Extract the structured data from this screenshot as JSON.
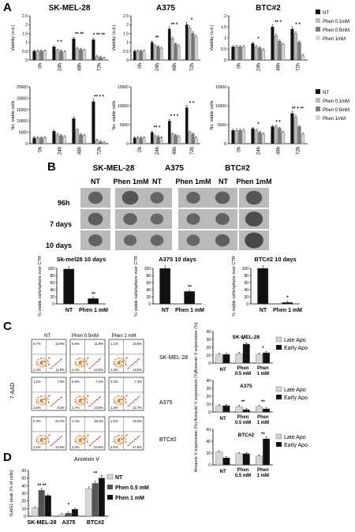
{
  "panels": {
    "A": "A",
    "B": "B",
    "C": "C",
    "D": "D"
  },
  "colors": {
    "NT": "#111111",
    "Phen 0.1mM": "#bdbdbd",
    "Phen 0.5mM": "#7a7a7a",
    "Phen 1mM": "#d6d6d6"
  },
  "panelA": {
    "legend": [
      "NT",
      "Phen 0.1mM",
      "Phen 0.5mM",
      "Phen 1mM"
    ],
    "timepoints": [
      "0h",
      "24h",
      "48h",
      "72h"
    ]
  },
  "panelB": {
    "col_titles": [
      "SK-MEL-28",
      "A375",
      "BTC#2"
    ],
    "col_labels": [
      "NT",
      "Phen 1mM"
    ],
    "row_labels": [
      "96h",
      "7 days",
      "10 days"
    ],
    "tone": [
      [
        [
          0.35,
          0.55
        ],
        [
          0.25,
          0.3
        ],
        [
          0.38,
          0.55
        ]
      ],
      [
        [
          0.4,
          0.3
        ],
        [
          0.2,
          0.25
        ],
        [
          0.3,
          0.7
        ]
      ],
      [
        [
          0.3,
          0.2
        ],
        [
          0.22,
          0.22
        ],
        [
          0.35,
          0.8
        ]
      ]
    ]
  },
  "panelC": {
    "conditions": [
      "NT",
      "Phen 0.5mM",
      "Phen 1 mM"
    ],
    "rows": [
      "SK-MEL-28",
      "A375",
      "BTC#2"
    ],
    "ylabel": "7-AAD",
    "xlabel": "Annexin V",
    "quadrants": [
      [
        [
          "0.7%",
          "10.9%",
          "1.4%",
          "11.8%"
        ],
        [
          "0.9%",
          "11.9%",
          "1.4%",
          "24.5%"
        ],
        [
          "1.1%",
          "10.8%",
          "1.3%",
          "13.6%"
        ]
      ],
      [
        [
          "1.2%",
          "7.6%",
          "1.5%",
          "8.2%"
        ],
        [
          "0.9%",
          "7.4%",
          "1.7%",
          "13.6%"
        ],
        [
          "0.3%",
          "7.4%",
          "1.4%",
          "12.7%"
        ]
      ],
      [
        [
          "2.3%",
          "22.2%",
          "1.2%",
          "12.8%"
        ],
        [
          "1.4%",
          "19.1%",
          "1.0%",
          "24.6%"
        ],
        [
          "1.5%",
          "15.0%",
          "1.5%",
          "47.8%"
        ]
      ]
    ]
  },
  "panelD": {
    "legend": [
      "NT",
      "Phen 0.5 mM",
      "Phen 1 mM"
    ]
  },
  "chart_data": [
    {
      "type": "bar",
      "id": "viability-skmel28",
      "title": "SK-MEL-28",
      "ylabel": "Viability (o.d.)",
      "ylim": [
        0,
        2.5
      ],
      "yticks": [
        "0",
        "0.5",
        "1",
        "1.5",
        "2",
        "2.5"
      ],
      "categories": [
        "0h",
        "24h",
        "48h",
        "72h"
      ],
      "series": [
        {
          "name": "NT",
          "values": [
            0.5,
            0.75,
            1.2,
            1.15
          ]
        },
        {
          "name": "Phen 0.1mM",
          "values": [
            0.5,
            0.55,
            0.65,
            0.2
          ]
        },
        {
          "name": "Phen 0.5mM",
          "values": [
            0.5,
            0.5,
            0.6,
            0.15
          ]
        },
        {
          "name": "Phen 1mM",
          "values": [
            0.5,
            0.45,
            0.55,
            0.1
          ]
        }
      ],
      "annotations": [
        "",
        "*  *",
        "**  **",
        "*  **  **"
      ]
    },
    {
      "type": "bar",
      "id": "viability-a375",
      "title": "A375",
      "ylabel": "Viability (o.d.)",
      "ylim": [
        0,
        2.5
      ],
      "yticks": [
        "0",
        "0.5",
        "1",
        "1.5",
        "2",
        "2.5"
      ],
      "categories": [
        "0h",
        "24h",
        "48h",
        "72h"
      ],
      "series": [
        {
          "name": "NT",
          "values": [
            0.5,
            1.0,
            1.75,
            2.0
          ]
        },
        {
          "name": "Phen 0.1mM",
          "values": [
            0.5,
            0.8,
            1.2,
            1.8
          ]
        },
        {
          "name": "Phen 0.5mM",
          "values": [
            0.5,
            0.75,
            0.9,
            1.5
          ]
        },
        {
          "name": "Phen 1mM",
          "values": [
            0.5,
            0.65,
            0.8,
            1.3
          ]
        }
      ],
      "annotations": [
        "",
        "**",
        "**  *",
        "*"
      ]
    },
    {
      "type": "bar",
      "id": "viability-btc2",
      "title": "BTC#2",
      "ylabel": "Viability (o.d.)",
      "ylim": [
        0,
        2.0
      ],
      "yticks": [
        "0",
        "0.5",
        "1",
        "1.5",
        "2"
      ],
      "categories": [
        "0h",
        "24h",
        "48h",
        "72h"
      ],
      "series": [
        {
          "name": "NT",
          "values": [
            0.6,
            0.75,
            1.5,
            1.4
          ]
        },
        {
          "name": "Phen 0.1mM",
          "values": [
            0.6,
            0.6,
            1.1,
            1.2
          ]
        },
        {
          "name": "Phen 0.5mM",
          "values": [
            0.6,
            0.55,
            0.85,
            0.8
          ]
        },
        {
          "name": "Phen 1mM",
          "values": [
            0.6,
            0.45,
            0.7,
            0.2
          ]
        }
      ],
      "annotations": [
        "",
        "*",
        "**  *",
        "*  *"
      ]
    },
    {
      "type": "bar",
      "id": "viable-skmel28",
      "ylabel": "No. viable cells",
      "ylim": [
        0,
        25000
      ],
      "yticks": [
        "0",
        "5000",
        "10000",
        "15000",
        "20000",
        "25000"
      ],
      "categories": [
        "0h",
        "24h",
        "48h",
        "72h"
      ],
      "series": [
        {
          "name": "NT",
          "values": [
            2500,
            5500,
            11000,
            18500
          ]
        },
        {
          "name": "Phen 0.1mM",
          "values": [
            2500,
            4000,
            6000,
            1500
          ]
        },
        {
          "name": "Phen 0.5mM",
          "values": [
            2500,
            3500,
            4000,
            800
          ]
        },
        {
          "name": "Phen 1mM",
          "values": [
            2500,
            3000,
            3500,
            500
          ]
        }
      ],
      "annotations": [
        "",
        "",
        "",
        "**  *  *"
      ]
    },
    {
      "type": "bar",
      "id": "viable-a375",
      "ylabel": "No. viable cells",
      "ylim": [
        0,
        15000
      ],
      "yticks": [
        "0",
        "5000",
        "10000",
        "15000"
      ],
      "categories": [
        "0h",
        "24h",
        "48h",
        "72h"
      ],
      "series": [
        {
          "name": "NT",
          "values": [
            1500,
            3000,
            6000,
            9500
          ]
        },
        {
          "name": "Phen 0.1mM",
          "values": [
            1500,
            2000,
            2500,
            3000
          ]
        },
        {
          "name": "Phen 0.5mM",
          "values": [
            1500,
            1800,
            2200,
            2500
          ]
        },
        {
          "name": "Phen 1mM",
          "values": [
            1500,
            1500,
            1800,
            1500
          ]
        }
      ],
      "annotations": [
        "",
        "**  *",
        "*  *  *",
        "*  *"
      ]
    },
    {
      "type": "bar",
      "id": "viable-btc2",
      "ylabel": "No. viable cells",
      "ylim": [
        0,
        15000
      ],
      "yticks": [
        "0",
        "5000",
        "10000",
        "15000"
      ],
      "categories": [
        "0h",
        "24h",
        "48h",
        "72h"
      ],
      "series": [
        {
          "name": "NT",
          "values": [
            3500,
            4000,
            4500,
            8000
          ]
        },
        {
          "name": "Phen 0.1mM",
          "values": [
            3500,
            3500,
            4500,
            7000
          ]
        },
        {
          "name": "Phen 0.5mM",
          "values": [
            3500,
            3000,
            4000,
            4500
          ]
        },
        {
          "name": "Phen 1mM",
          "values": [
            3500,
            2500,
            3000,
            2500
          ]
        }
      ],
      "annotations": [
        "",
        "*",
        "*  *",
        "**  *  **"
      ]
    },
    {
      "type": "bar",
      "id": "sphere-skmel28",
      "title": "Sk-mel28 10 days",
      "ylabel": "% viable cells/sphere over CTR",
      "ylim": [
        0,
        100
      ],
      "yticks": [
        "0",
        "20",
        "40",
        "60",
        "80",
        "100"
      ],
      "categories": [
        "NT",
        "Phen 1 mM"
      ],
      "values": [
        98,
        15
      ],
      "annotations": [
        "",
        "**"
      ]
    },
    {
      "type": "bar",
      "id": "sphere-a375",
      "title": "A375 10 days",
      "ylabel": "% viable cells/sphere over CTR",
      "ylim": [
        0,
        100
      ],
      "yticks": [
        "0",
        "20",
        "40",
        "60",
        "80",
        "100"
      ],
      "categories": [
        "NT",
        "Phen 1 mM"
      ],
      "values": [
        100,
        35
      ],
      "annotations": [
        "",
        "**"
      ]
    },
    {
      "type": "bar",
      "id": "sphere-btc2",
      "title": "BTC#2 10 days",
      "ylabel": "% viable cells/sphere over CTR",
      "ylim": [
        0,
        100
      ],
      "yticks": [
        "0",
        "20",
        "40",
        "60",
        "80",
        "100"
      ],
      "categories": [
        "NT",
        "Phen 1 mM"
      ],
      "values": [
        100,
        4
      ],
      "annotations": [
        "",
        "*"
      ]
    },
    {
      "type": "bar",
      "id": "annexin-skmel28",
      "title": "SK-MEL-28",
      "ylabel": "Annexin V expression (%)",
      "ylim": [
        0,
        40
      ],
      "yticks": [
        "0",
        "10",
        "20",
        "30",
        "40"
      ],
      "categories": [
        "NT",
        "Phen 0.5 mM",
        "Phen 1 mM"
      ],
      "series": [
        {
          "name": "Late Apo",
          "values": [
            11,
            12,
            11
          ]
        },
        {
          "name": "Early Apo",
          "values": [
            11,
            24,
            13
          ]
        }
      ],
      "annotations": [
        "",
        "*",
        "*"
      ]
    },
    {
      "type": "bar",
      "id": "annexin-a375",
      "title": "A375",
      "ylabel": "Annexin V expression (%)",
      "ylim": [
        0,
        40
      ],
      "yticks": [
        "0",
        "10",
        "20",
        "30",
        "40"
      ],
      "categories": [
        "NT",
        "Phen 0.5 mM",
        "Phen 1 mM"
      ],
      "series": [
        {
          "name": "Late Apo",
          "values": [
            8,
            7,
            7
          ]
        },
        {
          "name": "Early Apo",
          "values": [
            8,
            3,
            4
          ]
        }
      ],
      "annotations": [
        "",
        "**",
        "**"
      ]
    },
    {
      "type": "bar",
      "id": "annexin-btc2",
      "title": "BTC#2",
      "ylabel": "Annexin V expression (%)",
      "ylim": [
        0,
        60
      ],
      "yticks": [
        "0",
        "20",
        "40",
        "60"
      ],
      "categories": [
        "NT",
        "Phen 0.5 mM",
        "Phen 1 mM"
      ],
      "series": [
        {
          "name": "Late Apo",
          "values": [
            22,
            19,
            15
          ]
        },
        {
          "name": "Early Apo",
          "values": [
            12,
            19,
            44
          ]
        }
      ],
      "annotations": [
        "",
        "",
        "**"
      ]
    },
    {
      "type": "bar",
      "id": "subg1",
      "ylabel": "SubG1 peak (% of cells)",
      "ylim": [
        0,
        60
      ],
      "yticks": [
        "0",
        "10",
        "20",
        "30",
        "40",
        "50",
        "60"
      ],
      "categories": [
        "SK-MEL-28",
        "A375",
        "BTC#2"
      ],
      "series": [
        {
          "name": "NT",
          "values": [
            11,
            2,
            36
          ]
        },
        {
          "name": "Phen 0.5 mM",
          "values": [
            34,
            4,
            43
          ]
        },
        {
          "name": "Phen 1 mM",
          "values": [
            27,
            9,
            50
          ]
        }
      ],
      "annotations": [
        "**  **",
        "*",
        "**"
      ]
    }
  ]
}
